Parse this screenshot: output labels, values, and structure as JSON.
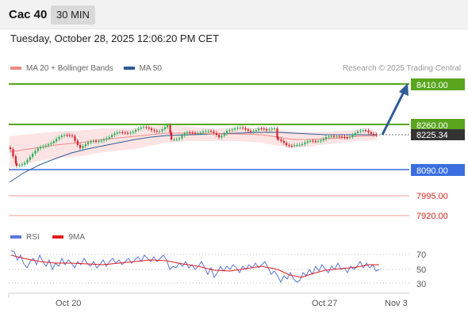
{
  "header": {
    "symbol": "Cac 40",
    "timeframe": "30 MIN"
  },
  "datetime": "Tuesday, October 28, 2025 12:06:20 PM CET",
  "legend_main": [
    {
      "label": "MA 20 + Bollinger Bands",
      "color": "#f08a8a"
    },
    {
      "label": "MA 50",
      "color": "#2e5c96"
    }
  ],
  "legend_rsi": [
    {
      "label": "RSI",
      "color": "#5a78d8"
    },
    {
      "label": "9MA",
      "color": "#e31c1c"
    }
  ],
  "credit": "Research © 2025 Trading Central",
  "levels": [
    {
      "price": "8410.00",
      "color": "#5aa51e",
      "kind": "resistance"
    },
    {
      "price": "8260.00",
      "color": "#5aa51e",
      "kind": "resistance"
    },
    {
      "price": "8225.34",
      "color": "#333333",
      "kind": "last"
    },
    {
      "price": "8090.00",
      "color": "#3b6fe0",
      "kind": "pivot"
    },
    {
      "price": "7995.00",
      "color": "#e0433a",
      "kind": "support"
    },
    {
      "price": "7920.00",
      "color": "#e0433a",
      "kind": "support"
    }
  ],
  "rsi_levels": [
    "70",
    "50",
    "30"
  ],
  "xaxis": [
    "Oct 20",
    "Oct 27",
    "Nov 3"
  ],
  "colors": {
    "candle_up": "#2bb05a",
    "candle_down": "#d2262b",
    "band_fill": "#fde4e4",
    "ma20": "#f08a8a",
    "ma50": "#2e5c96",
    "rsi": "#5a78d8",
    "rsi_ma": "#e31c1c",
    "arrow": "#2e5c96"
  }
}
